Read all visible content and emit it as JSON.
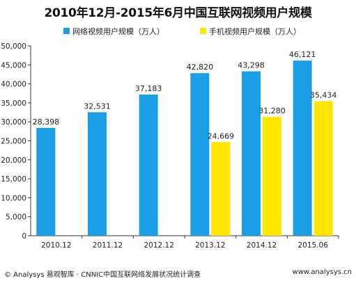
{
  "chart_data": {
    "type": "bar",
    "title": "2010年12月-2015年6月中国互联网视频用户规模",
    "categories": [
      "2010.12",
      "2011.12",
      "2012.12",
      "2013.12",
      "2014.12",
      "2015.06"
    ],
    "series": [
      {
        "name": "网络视频用户规模（万人）",
        "color": "#1a9ee6",
        "values": [
          28398,
          32531,
          37183,
          42820,
          43298,
          46121
        ]
      },
      {
        "name": "手机视频用户规模（万人）",
        "color": "#ffe600",
        "values": [
          null,
          null,
          null,
          24669,
          31280,
          35434
        ]
      }
    ],
    "value_labels": [
      [
        "28,398",
        "32,531",
        "37,183",
        "42,820",
        "43,298",
        "46,121"
      ],
      [
        null,
        null,
        null,
        "24,669",
        "31,280",
        "35,434"
      ]
    ],
    "ylim": [
      0,
      50000
    ],
    "yticks": [
      "0",
      "5,000",
      "10,000",
      "15,000",
      "20,000",
      "25,000",
      "30,000",
      "35,000",
      "40,000",
      "45,000",
      "50,000"
    ],
    "ytick_values": [
      0,
      5000,
      10000,
      15000,
      20000,
      25000,
      30000,
      35000,
      40000,
      45000,
      50000
    ],
    "legend_position": "top",
    "grid": false
  },
  "footer": {
    "source": "© Analysys 易观智库 · CNNIC中国互联网络发展状况统计调查",
    "website": "www.analysys.cn"
  }
}
